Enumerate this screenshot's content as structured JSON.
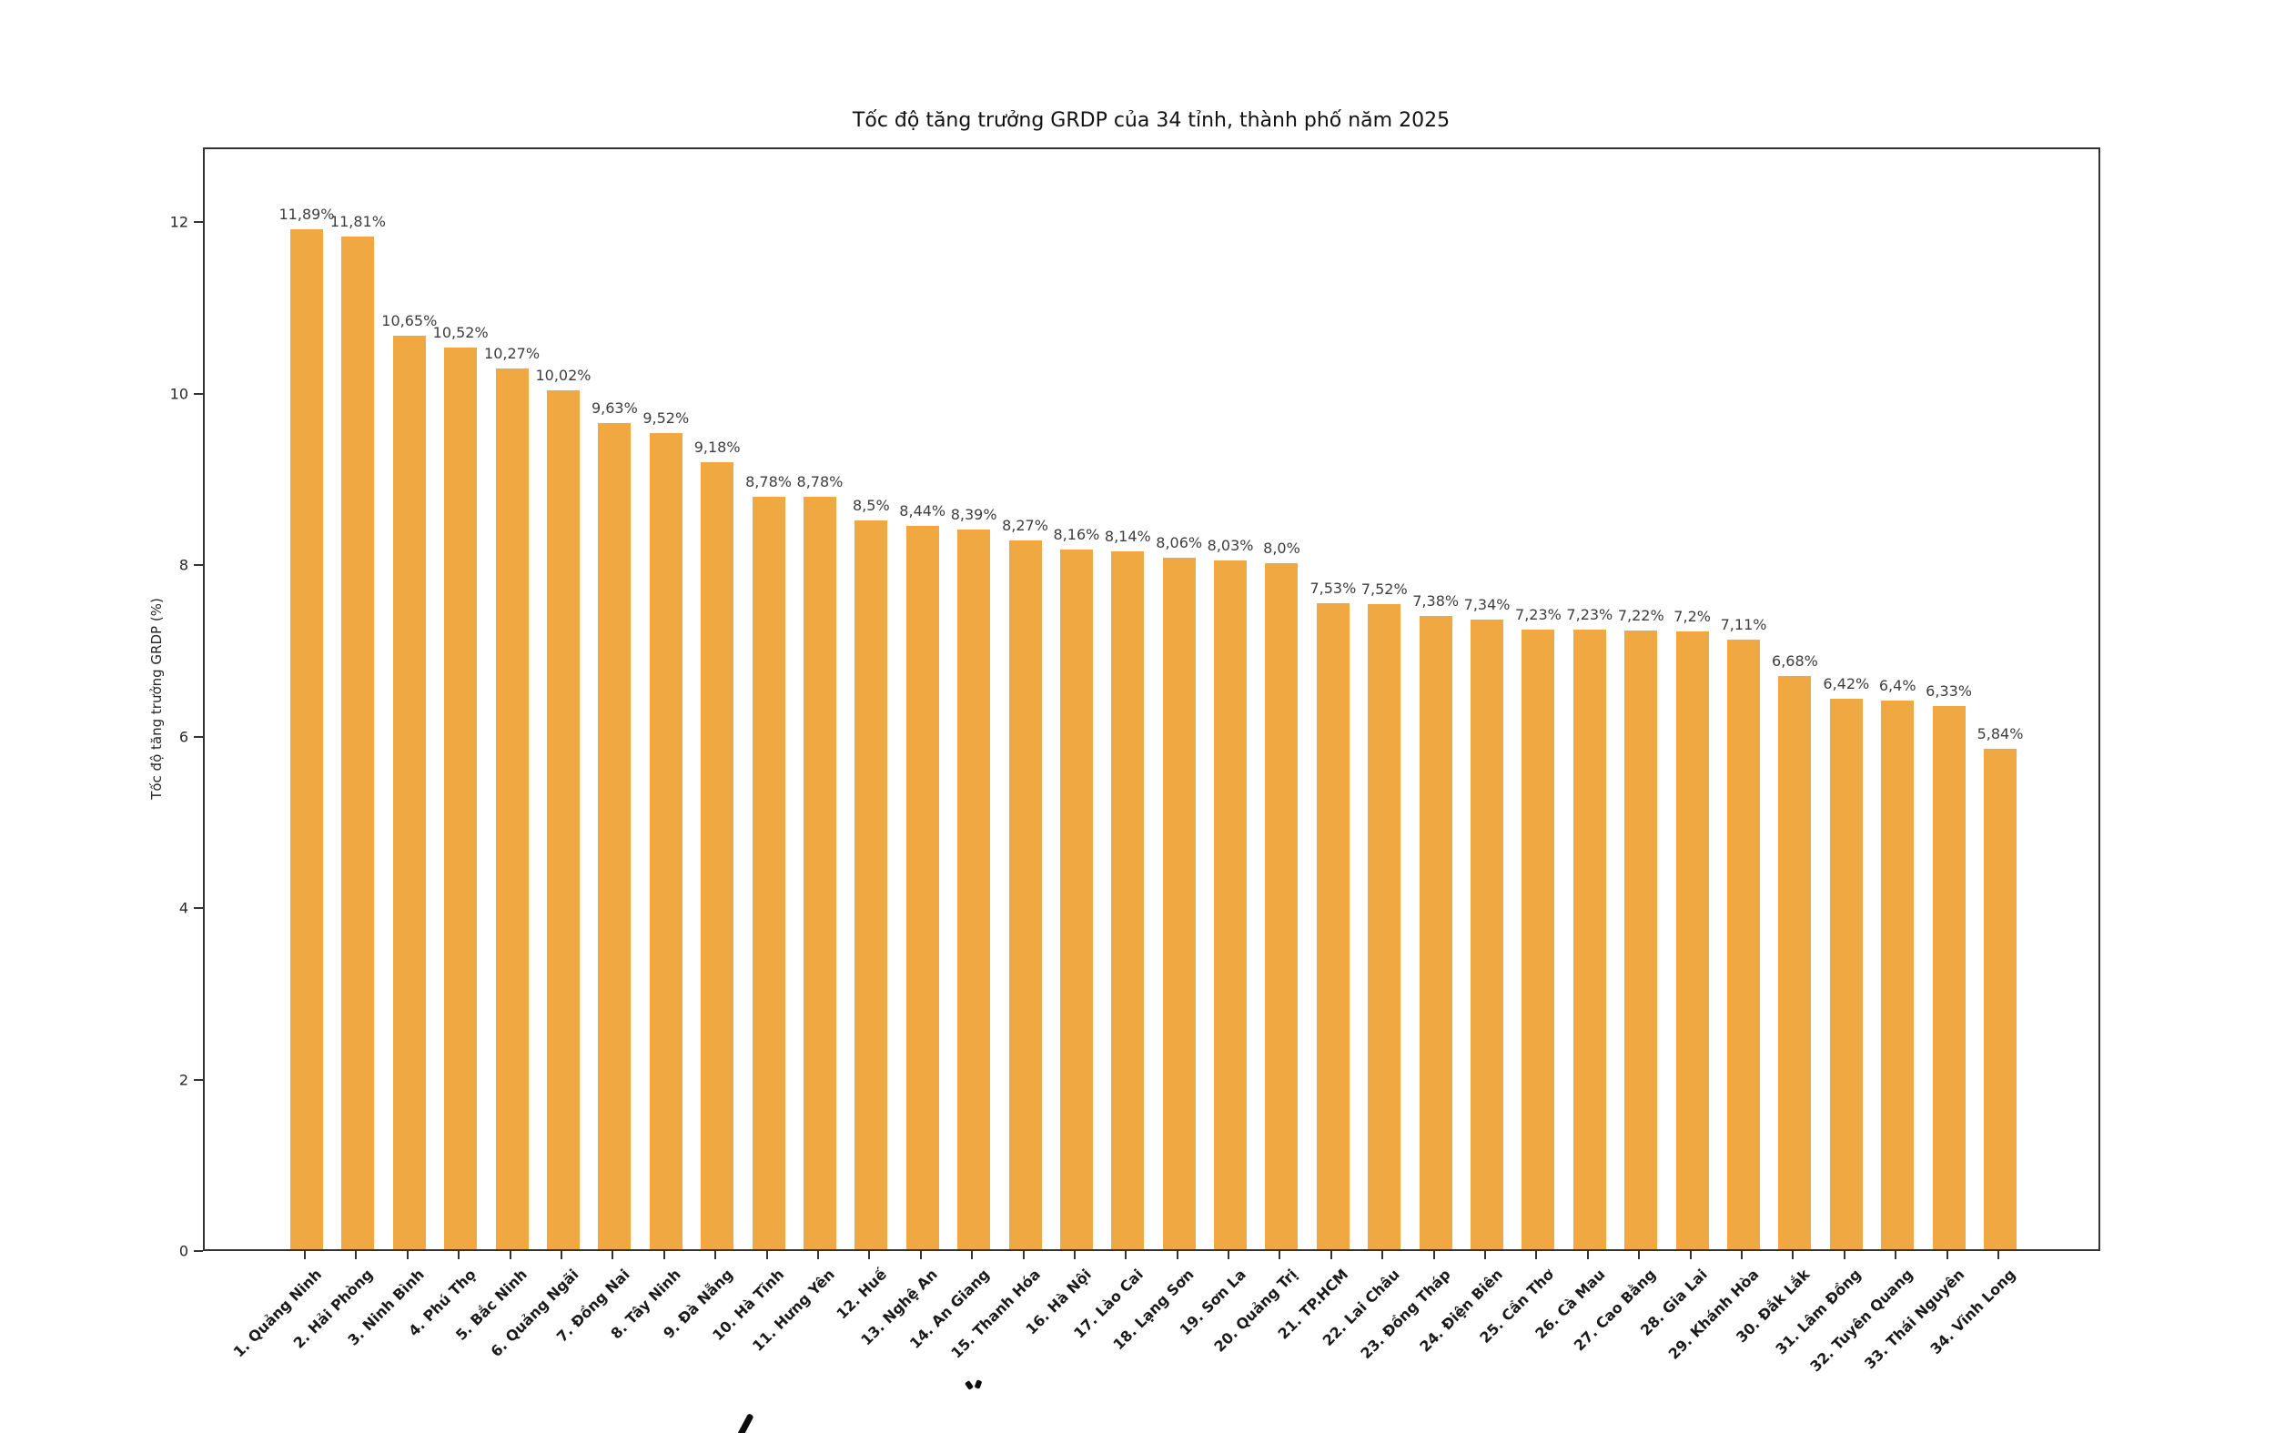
{
  "chart_data": {
    "type": "bar",
    "title": "Tốc độ tăng trưởng GRDP của 34 tỉnh, thành phố năm 2025",
    "ylabel": "Tốc độ tăng trưởng GRDP (%)",
    "xlabel": "",
    "ylim": [
      0,
      12.87
    ],
    "yticks": [
      0,
      2,
      4,
      6,
      8,
      10,
      12
    ],
    "grid": false,
    "legend": "none",
    "bar_color": "#F0A843",
    "decimal_separator": ",",
    "categories": [
      "1. Quảng Ninh",
      "2. Hải Phòng",
      "3. Ninh Bình",
      "4. Phú Thọ",
      "5. Bắc Ninh",
      "6. Quảng Ngãi",
      "7. Đồng Nai",
      "8. Tây Ninh",
      "9. Đà Nẵng",
      "10. Hà Tĩnh",
      "11. Hưng Yên",
      "12. Huế",
      "13. Nghệ An",
      "14. An Giang",
      "15. Thanh Hóa",
      "16. Hà Nội",
      "17. Lào Cai",
      "18. Lạng Sơn",
      "19. Sơn La",
      "20. Quảng Trị",
      "21. TP.HCM",
      "22. Lai Châu",
      "23. Đồng Tháp",
      "24. Điện Biên",
      "25. Cần Thơ",
      "26. Cà Mau",
      "27. Cao Bằng",
      "28. Gia Lai",
      "29. Khánh Hòa",
      "30. Đắk Lắk",
      "31. Lâm Đồng",
      "32. Tuyên Quang",
      "33. Thái Nguyên",
      "34. Vĩnh Long"
    ],
    "values": [
      11.89,
      11.81,
      10.65,
      10.52,
      10.27,
      10.02,
      9.63,
      9.52,
      9.18,
      8.78,
      8.78,
      8.5,
      8.44,
      8.39,
      8.27,
      8.16,
      8.14,
      8.06,
      8.03,
      8.0,
      7.53,
      7.52,
      7.38,
      7.34,
      7.23,
      7.23,
      7.22,
      7.2,
      7.11,
      6.68,
      6.42,
      6.4,
      6.33,
      5.84
    ],
    "value_labels": [
      "11,89%",
      "11,81%",
      "10,65%",
      "10,52%",
      "10,27%",
      "10,02%",
      "9,63%",
      "9,52%",
      "9,18%",
      "8,78%",
      "8,78%",
      "8,5%",
      "8,44%",
      "8,39%",
      "8,27%",
      "8,16%",
      "8,14%",
      "8,06%",
      "8,03%",
      "8,0%",
      "7,53%",
      "7,52%",
      "7,38%",
      "7,34%",
      "7,23%",
      "7,23%",
      "7,22%",
      "7,2%",
      "7,11%",
      "6,68%",
      "6,42%",
      "6,4%",
      "6,33%",
      "5,84%"
    ]
  }
}
